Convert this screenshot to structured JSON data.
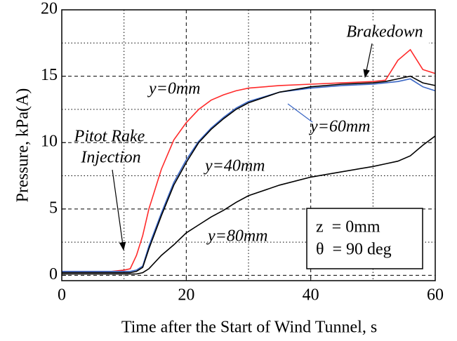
{
  "chart_data": {
    "type": "line",
    "x_label": "Time after the Start of Wind Tunnel,  s",
    "y_label": "Pressure,  kPa(A)",
    "x": [
      0,
      4,
      8,
      10,
      11,
      12,
      13,
      14,
      16,
      18,
      20,
      22,
      24,
      26,
      28,
      30,
      35,
      40,
      45,
      50,
      52,
      54,
      56,
      58,
      60
    ],
    "series": [
      {
        "name": "y=0mm",
        "color": "#ff2a2a",
        "values": [
          0.3,
          0.3,
          0.3,
          0.4,
          0.5,
          1.5,
          3,
          5,
          8,
          10.2,
          11.5,
          12.5,
          13.2,
          13.6,
          13.9,
          14.1,
          14.3,
          14.4,
          14.5,
          14.6,
          14.7,
          16.2,
          17,
          15.5,
          15.2
        ]
      },
      {
        "name": "y=60mm",
        "color": "#3a66c4",
        "values": [
          0.3,
          0.3,
          0.3,
          0.3,
          0.3,
          0.4,
          0.7,
          2.2,
          4.7,
          7,
          8.7,
          10.1,
          11.1,
          11.9,
          12.6,
          13.1,
          13.8,
          14.1,
          14.3,
          14.4,
          14.5,
          14.6,
          14.8,
          14.2,
          13.9
        ]
      },
      {
        "name": "y=40mm",
        "color": "#000000",
        "values": [
          0.2,
          0.2,
          0.2,
          0.2,
          0.2,
          0.3,
          0.6,
          2,
          4.5,
          6.8,
          8.5,
          10,
          11,
          11.8,
          12.5,
          13,
          13.8,
          14.2,
          14.4,
          14.5,
          14.6,
          14.8,
          15,
          14.5,
          14.3
        ]
      },
      {
        "name": "y=80mm",
        "color": "#000000",
        "values": [
          0.1,
          0.1,
          0.1,
          0.1,
          0.1,
          0.1,
          0.2,
          0.5,
          1.5,
          2.3,
          3.2,
          3.8,
          4.4,
          4.9,
          5.5,
          6,
          6.8,
          7.4,
          7.8,
          8.2,
          8.4,
          8.6,
          9,
          9.8,
          10.5
        ]
      }
    ],
    "xlim": [
      0,
      60
    ],
    "ylim": [
      -0.4,
      20
    ],
    "xticks": [
      0,
      20,
      40,
      60
    ],
    "yticks": [
      0,
      5,
      10,
      15,
      20
    ],
    "x_minor_grid": [
      10,
      30,
      50
    ],
    "y_minor_grid": [
      2.5,
      7.5,
      12.5,
      17.5
    ],
    "grid": true,
    "annotations": [
      "Brakedown",
      "Pitot Rake",
      "Injection"
    ],
    "conditions": [
      "z  = 0mm",
      "θ  = 90 deg"
    ]
  }
}
